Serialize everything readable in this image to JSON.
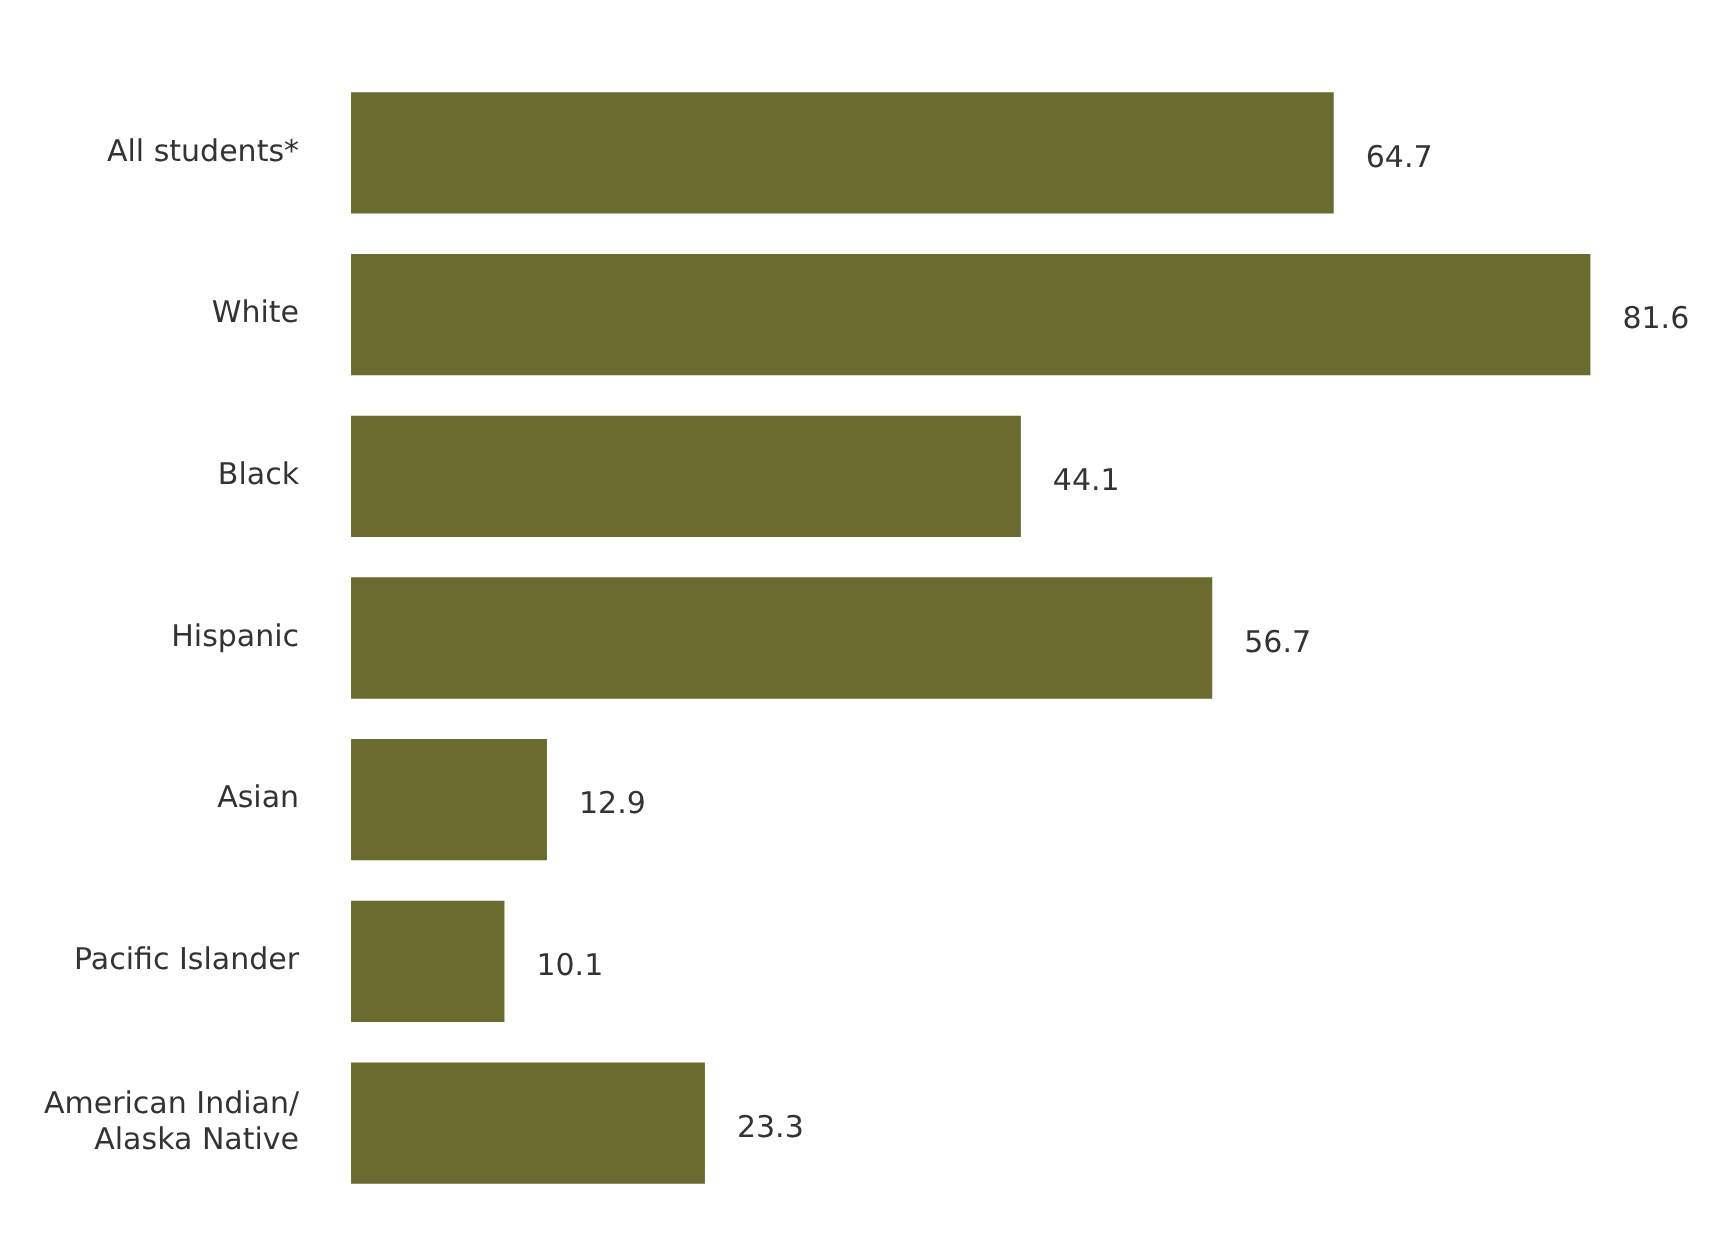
{
  "chart_data": {
    "type": "bar",
    "orientation": "horizontal",
    "categories": [
      "All students*",
      "White",
      "Black",
      "Hispanic",
      "Asian",
      "Pacific Islander",
      "American Indian/\nAlaska Native"
    ],
    "values": [
      64.7,
      81.6,
      44.1,
      56.7,
      12.9,
      10.1,
      23.3
    ],
    "color": "#6c6b2f",
    "data_labels": true
  }
}
